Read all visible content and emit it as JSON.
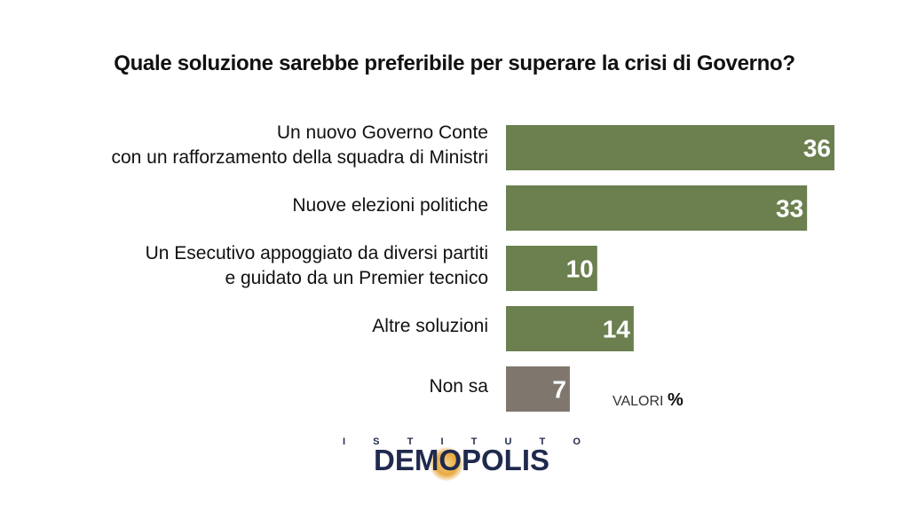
{
  "title": "Quale soluzione sarebbe preferibile per superare la crisi di Governo?",
  "unit_label": "VALORI",
  "unit_symbol": "%",
  "logo": {
    "top_letters": [
      "I",
      "S",
      "T",
      "I",
      "T",
      "U",
      "T",
      "O"
    ],
    "name": "DEMOPOLIS"
  },
  "colors": {
    "green": "#6b7f4f",
    "gray": "#7f776d"
  },
  "chart_data": {
    "type": "bar",
    "orientation": "horizontal",
    "title": "Quale soluzione sarebbe preferibile per superare la crisi di Governo?",
    "categories": [
      "Un nuovo Governo Conte\ncon un rafforzamento della squadra di Ministri",
      "Nuove elezioni politiche",
      "Un Esecutivo appoggiato da diversi partiti\ne guidato da un Premier tecnico",
      "Altre soluzioni",
      "Non sa"
    ],
    "values": [
      36,
      33,
      10,
      14,
      7
    ],
    "bar_colors": [
      "#6b7f4f",
      "#6b7f4f",
      "#6b7f4f",
      "#6b7f4f",
      "#7f776d"
    ],
    "xlim": [
      0,
      36
    ],
    "grid": false,
    "legend": "none"
  }
}
